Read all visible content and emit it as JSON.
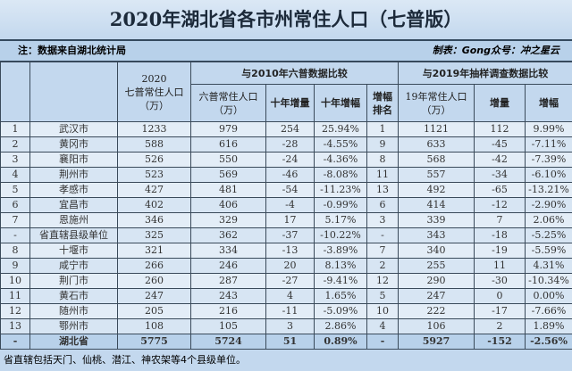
{
  "title": "2020年湖北省各市州常住人口（七普版）",
  "note_left": "注：数据来自湖北统计局",
  "note_right": "制表：Gong众号：冲之星云",
  "header": {
    "col2020_year": "2020",
    "col2020_label": "七普常住人口",
    "col2020_unit": "（万）",
    "group2010": "与2010年六普数据比较",
    "c2010_pop": "六普常住人口",
    "c2010_unit": "（万）",
    "c_inc10": "十年增量",
    "c_rate10": "十年增幅",
    "c_rank": "增幅排名",
    "group2019": "与2019年抽样调查数据比较",
    "c2019_pop": "19年常住人口",
    "c2019_unit": "（万）",
    "c_inc19": "增量",
    "c_rate19": "增幅"
  },
  "rows": [
    [
      "1",
      "武汉市",
      "1233",
      "979",
      "254",
      "25.94%",
      "1",
      "1121",
      "112",
      "9.99%"
    ],
    [
      "2",
      "黄冈市",
      "588",
      "616",
      "-28",
      "-4.55%",
      "9",
      "633",
      "-45",
      "-7.11%"
    ],
    [
      "3",
      "襄阳市",
      "526",
      "550",
      "-24",
      "-4.36%",
      "8",
      "568",
      "-42",
      "-7.39%"
    ],
    [
      "4",
      "荆州市",
      "523",
      "569",
      "-46",
      "-8.08%",
      "11",
      "557",
      "-34",
      "-6.10%"
    ],
    [
      "5",
      "孝感市",
      "427",
      "481",
      "-54",
      "-11.23%",
      "13",
      "492",
      "-65",
      "-13.21%"
    ],
    [
      "6",
      "宜昌市",
      "402",
      "406",
      "-4",
      "-0.99%",
      "6",
      "414",
      "-12",
      "-2.90%"
    ],
    [
      "7",
      "恩施州",
      "346",
      "329",
      "17",
      "5.17%",
      "3",
      "339",
      "7",
      "2.06%"
    ],
    [
      "-",
      "省直辖县级单位",
      "325",
      "362",
      "-37",
      "-10.22%",
      "-",
      "343",
      "-18",
      "-5.25%"
    ],
    [
      "8",
      "十堰市",
      "321",
      "334",
      "-13",
      "-3.89%",
      "7",
      "340",
      "-19",
      "-5.59%"
    ],
    [
      "9",
      "咸宁市",
      "266",
      "246",
      "20",
      "8.13%",
      "2",
      "255",
      "11",
      "4.31%"
    ],
    [
      "10",
      "荆门市",
      "260",
      "287",
      "-27",
      "-9.41%",
      "12",
      "290",
      "-30",
      "-10.34%"
    ],
    [
      "11",
      "黄石市",
      "247",
      "243",
      "4",
      "1.65%",
      "5",
      "247",
      "0",
      "0.00%"
    ],
    [
      "12",
      "随州市",
      "205",
      "216",
      "-11",
      "-5.09%",
      "10",
      "222",
      "-17",
      "-7.66%"
    ],
    [
      "13",
      "鄂州市",
      "108",
      "105",
      "3",
      "2.86%",
      "4",
      "106",
      "2",
      "1.89%"
    ],
    [
      "-",
      "湖北省",
      "5775",
      "5724",
      "51",
      "0.89%",
      "-",
      "5927",
      "-152",
      "-2.56%"
    ]
  ],
  "footer": "省直辖包括天门、仙桃、潜江、神农架等4个县级单位。"
}
